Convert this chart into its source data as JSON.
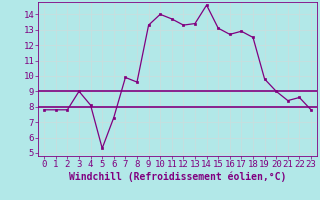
{
  "xlabel": "Windchill (Refroidissement éolien,°C)",
  "background_color": "#b2e8e8",
  "line_color": "#800080",
  "grid_color": "#c8dede",
  "xlim": [
    -0.5,
    23.5
  ],
  "ylim": [
    4.8,
    14.8
  ],
  "yticks": [
    5,
    6,
    7,
    8,
    9,
    10,
    11,
    12,
    13,
    14
  ],
  "xticks": [
    0,
    1,
    2,
    3,
    4,
    5,
    6,
    7,
    8,
    9,
    10,
    11,
    12,
    13,
    14,
    15,
    16,
    17,
    18,
    19,
    20,
    21,
    22,
    23
  ],
  "windchill_x": [
    0,
    1,
    2,
    3,
    4,
    5,
    6,
    7,
    8,
    9,
    10,
    11,
    12,
    13,
    14,
    15,
    16,
    17,
    18,
    19,
    20,
    21,
    22,
    23
  ],
  "windchill_y": [
    7.8,
    7.8,
    7.8,
    9.0,
    8.1,
    5.3,
    7.3,
    9.9,
    9.6,
    13.3,
    14.0,
    13.7,
    13.3,
    13.4,
    14.6,
    13.1,
    12.7,
    12.9,
    12.5,
    9.8,
    9.0,
    8.4,
    8.6,
    7.8
  ],
  "hline1_y": 9.0,
  "hline1_xstart": 0,
  "hline2_y": 8.0,
  "hline2_xstart": 0,
  "font_size": 6.5
}
